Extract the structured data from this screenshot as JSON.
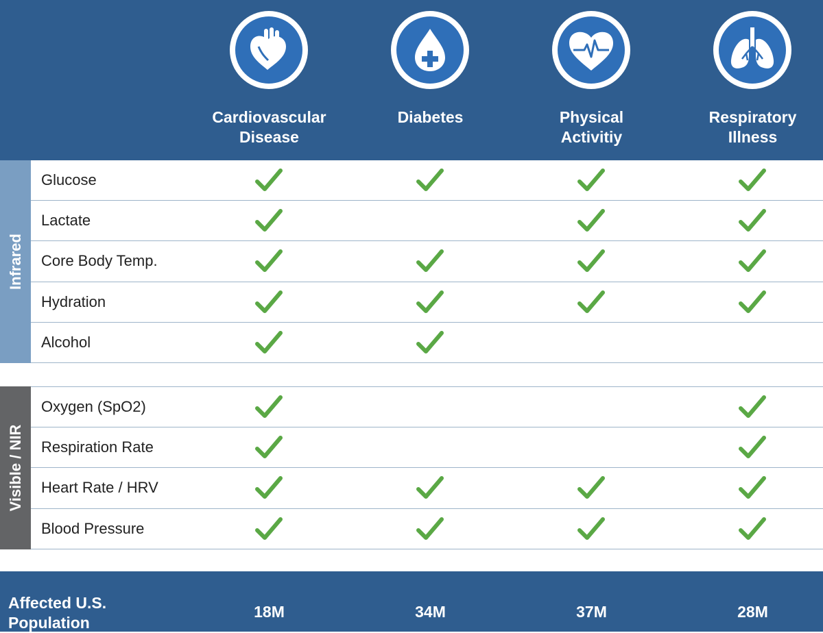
{
  "columns": [
    {
      "title": "Cardiovascular\nDisease",
      "icon": "heart-organ-icon"
    },
    {
      "title": "Diabetes",
      "icon": "blood-drop-plus-icon"
    },
    {
      "title": "Physical\nActivitiy",
      "icon": "heart-pulse-icon"
    },
    {
      "title": "Respiratory\nIllness",
      "icon": "lungs-icon"
    }
  ],
  "groups": [
    {
      "label": "Infrared",
      "color": "#7a9ec2",
      "rows": [
        {
          "label": "Glucose",
          "checks": [
            true,
            true,
            true,
            true
          ]
        },
        {
          "label": "Lactate",
          "checks": [
            true,
            false,
            true,
            true
          ]
        },
        {
          "label": "Core Body Temp.",
          "checks": [
            true,
            true,
            true,
            true
          ]
        },
        {
          "label": "Hydration",
          "checks": [
            true,
            true,
            true,
            true
          ]
        },
        {
          "label": "Alcohol",
          "checks": [
            true,
            true,
            false,
            false
          ]
        }
      ]
    },
    {
      "label": "Visible / NIR",
      "color": "#636466",
      "rows": [
        {
          "label": "Oxygen (SpO2)",
          "checks": [
            true,
            false,
            false,
            true
          ]
        },
        {
          "label": "Respiration Rate",
          "checks": [
            true,
            false,
            false,
            true
          ]
        },
        {
          "label": "Heart Rate / HRV",
          "checks": [
            true,
            true,
            true,
            true
          ]
        },
        {
          "label": "Blood Pressure",
          "checks": [
            true,
            true,
            true,
            true
          ]
        }
      ]
    }
  ],
  "footer": {
    "label": "Affected U.S.\nPopulation",
    "values": [
      "18M",
      "34M",
      "37M",
      "28M"
    ]
  },
  "colors": {
    "header": "#2f5d8f",
    "icon_fill": "#2f6fb8",
    "check": "#5aa845"
  }
}
